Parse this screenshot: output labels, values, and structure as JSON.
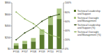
{
  "chart_data": {
    "type": "bar",
    "stacked": true,
    "grid": false,
    "legend": "right",
    "categories": [
      "FY06",
      "FY07",
      "FY08",
      "FY09",
      "FY10",
      "FY11"
    ],
    "ylim": [
      0,
      800
    ],
    "yticks": [
      {
        "value": 0,
        "label": "$0"
      },
      {
        "value": 200,
        "label": "$200"
      },
      {
        "value": 400,
        "label": "$400"
      },
      {
        "value": 600,
        "label": "$600"
      },
      {
        "value": 800,
        "label": "$800"
      }
    ],
    "y2lim": [
      0,
      100
    ],
    "y2ticks": [
      {
        "value": 0,
        "label": "0%"
      },
      {
        "value": 20,
        "label": "20%"
      },
      {
        "value": 40,
        "label": "40%"
      },
      {
        "value": 60,
        "label": "60%"
      },
      {
        "value": 80,
        "label": "80%"
      },
      {
        "value": 100,
        "label": "100%"
      }
    ],
    "series": [
      {
        "name": "Technical Leadership and Support",
        "type": "bar",
        "color": "#5a7a2e",
        "values": [
          60,
          90,
          130,
          250,
          420,
          520
        ]
      },
      {
        "name": "Technical Oversight and Management",
        "type": "bar",
        "color": "#a9c47f",
        "values": [
          40,
          50,
          60,
          90,
          150,
          180
        ]
      },
      {
        "name": "Technical Leadership and Support (%)",
        "type": "line",
        "axis": "y2",
        "color": "#2f4a12",
        "marker": "circle",
        "line_style": "solid",
        "values": [
          20,
          35,
          45,
          60,
          70,
          75
        ]
      },
      {
        "name": "Technical Oversight and Management (%)",
        "type": "line",
        "axis": "y2",
        "color": "#8fb05a",
        "marker": "circle",
        "line_style": "solid",
        "values": [
          80,
          65,
          55,
          40,
          30,
          25
        ]
      }
    ]
  }
}
